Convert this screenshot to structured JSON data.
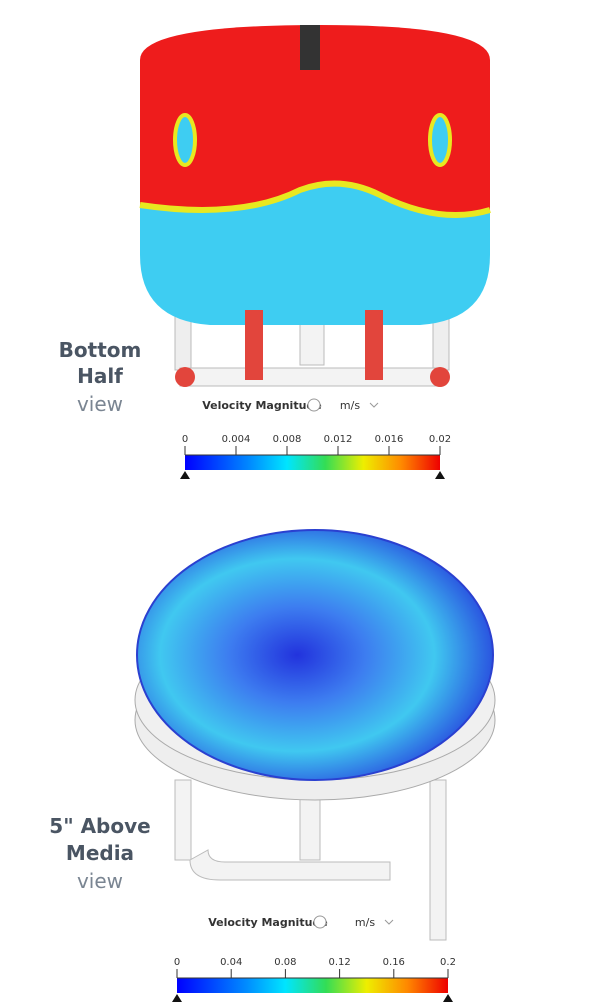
{
  "panels": [
    {
      "label": [
        "Bottom",
        "Half",
        "view"
      ],
      "legend_title": "Velocity Magnitude",
      "unit": "m/s",
      "scale": {
        "range": [
          0,
          0.02
        ],
        "ticks": [
          0,
          0.004,
          0.008,
          0.012,
          0.016,
          0.02
        ]
      }
    },
    {
      "label": [
        "5\" Above",
        "Media",
        "view"
      ],
      "legend_title": "Velocity Magnitude",
      "unit": "m/s",
      "scale": {
        "range": [
          0,
          0.2
        ],
        "ticks": [
          0,
          0.04,
          0.08,
          0.12,
          0.16,
          0.2
        ]
      }
    }
  ]
}
